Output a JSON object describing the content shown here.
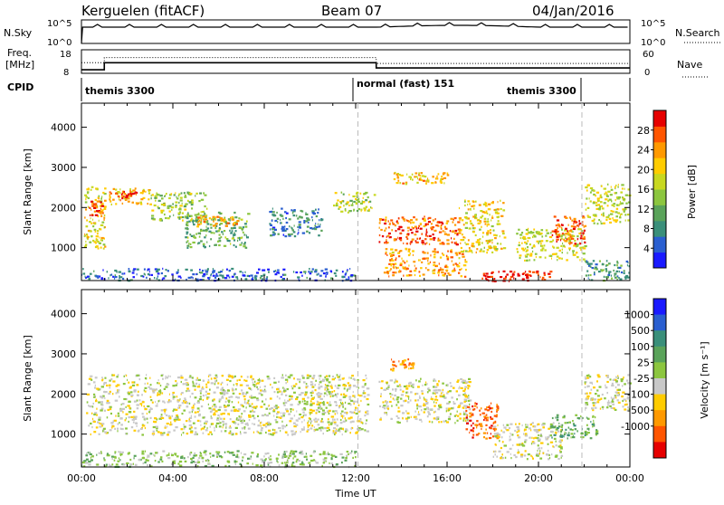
{
  "header": {
    "station": "Kerguelen (fitACF)",
    "beam": "Beam 07",
    "date": "04/Jan/2016"
  },
  "strip_nsky": {
    "left_label": "N.Sky",
    "right_label": "N.Search",
    "left_ticks": [
      "10^5",
      "10^0"
    ],
    "right_ticks": [
      "10^5",
      "10^0"
    ]
  },
  "strip_freq": {
    "left_label": "Freq.",
    "left_unit": "[MHz]",
    "right_label": "Nave",
    "left_ticks": [
      "18",
      "8"
    ],
    "right_ticks": [
      "60",
      "0"
    ],
    "freq_steps": [
      {
        "from_h": 0.0,
        "to_h": 1.0,
        "mhz": 9.5
      },
      {
        "from_h": 1.0,
        "to_h": 12.9,
        "mhz": 12.5
      },
      {
        "from_h": 12.9,
        "to_h": 24.0,
        "mhz": 10.3
      }
    ],
    "nave_steps": [
      {
        "from_h": 0.0,
        "to_h": 1.0,
        "value": 27
      },
      {
        "from_h": 1.0,
        "to_h": 12.9,
        "value": 40
      },
      {
        "from_h": 12.9,
        "to_h": 24.0,
        "value": 25
      }
    ]
  },
  "strip_cpid": {
    "label": "CPID",
    "segments": [
      {
        "name": "themis 3300",
        "from_h": 0.0,
        "to_h": 12.1
      },
      {
        "name": "normal (fast) 151",
        "from_h": 12.1,
        "to_h": 21.9
      },
      {
        "name": "themis 3300",
        "from_h": 21.9,
        "to_h": 24.0
      }
    ]
  },
  "chart_data": [
    {
      "type": "heatmap",
      "panel": "power",
      "ylabel": "Slant Range [km]",
      "ylim": [
        180,
        4600
      ],
      "yticks": [
        1000,
        2000,
        3000,
        4000
      ],
      "xlabel": "",
      "xlim": [
        0,
        24
      ],
      "colorbar": {
        "label": "Power [dB]",
        "range": [
          0,
          32
        ],
        "ticks": [
          4,
          8,
          12,
          16,
          20,
          24,
          28
        ],
        "colors": [
          "#1a1aff",
          "#2a5fd0",
          "#3a8f7a",
          "#5aa35a",
          "#8cc63f",
          "#c8d820",
          "#ffcc00",
          "#ff9900",
          "#ff5500",
          "#e60000"
        ]
      },
      "regions": [
        {
          "t0": 0.0,
          "t1": 12.0,
          "r0": 200,
          "r1": 500,
          "v": 4
        },
        {
          "t0": 0.1,
          "t1": 1.0,
          "r0": 1000,
          "r1": 2600,
          "v": 18
        },
        {
          "t0": 0.3,
          "t1": 0.9,
          "r0": 1800,
          "r1": 2200,
          "v": 26
        },
        {
          "t0": 1.2,
          "t1": 3.0,
          "r0": 2100,
          "r1": 2500,
          "v": 20
        },
        {
          "t0": 1.4,
          "t1": 2.4,
          "r0": 2250,
          "r1": 2450,
          "v": 27
        },
        {
          "t0": 3.0,
          "t1": 5.5,
          "r0": 1700,
          "r1": 2400,
          "v": 14
        },
        {
          "t0": 4.5,
          "t1": 7.3,
          "r0": 1000,
          "r1": 1900,
          "v": 10
        },
        {
          "t0": 5.0,
          "t1": 6.8,
          "r0": 1550,
          "r1": 1800,
          "v": 22
        },
        {
          "t0": 8.2,
          "t1": 10.5,
          "r0": 1300,
          "r1": 2000,
          "v": 6
        },
        {
          "t0": 11.0,
          "t1": 12.8,
          "r0": 1900,
          "r1": 2400,
          "v": 15
        },
        {
          "t0": 13.0,
          "t1": 16.5,
          "r0": 1500,
          "r1": 1800,
          "v": 24
        },
        {
          "t0": 13.0,
          "t1": 16.5,
          "r0": 1100,
          "r1": 1500,
          "v": 26
        },
        {
          "t0": 13.2,
          "t1": 16.8,
          "r0": 300,
          "r1": 1000,
          "v": 22
        },
        {
          "t0": 13.5,
          "t1": 16.0,
          "r0": 2600,
          "r1": 2900,
          "v": 20
        },
        {
          "t0": 16.5,
          "t1": 18.5,
          "r0": 900,
          "r1": 2200,
          "v": 18
        },
        {
          "t0": 17.5,
          "t1": 20.5,
          "r0": 180,
          "r1": 450,
          "v": 29
        },
        {
          "t0": 19.0,
          "t1": 22.0,
          "r0": 700,
          "r1": 1500,
          "v": 16
        },
        {
          "t0": 20.5,
          "t1": 22.0,
          "r0": 1100,
          "r1": 1800,
          "v": 26
        },
        {
          "t0": 22.0,
          "t1": 24.0,
          "r0": 1600,
          "r1": 2600,
          "v": 16
        },
        {
          "t0": 22.0,
          "t1": 24.0,
          "r0": 200,
          "r1": 700,
          "v": 8
        }
      ]
    },
    {
      "type": "heatmap",
      "panel": "velocity",
      "ylabel": "Slant Range [km]",
      "ylim": [
        180,
        4600
      ],
      "yticks": [
        1000,
        2000,
        3000,
        4000
      ],
      "xlabel": "Time UT",
      "xlim": [
        0,
        24
      ],
      "xticks": [
        "00:00",
        "04:00",
        "08:00",
        "12:00",
        "16:00",
        "20:00",
        "00:00"
      ],
      "colorbar": {
        "label": "Velocity [m s⁻¹]",
        "ticks": [
          "1000",
          "500",
          "100",
          "25",
          "-25",
          "-100",
          "-500",
          "-1000"
        ],
        "colors": [
          "#1a1aff",
          "#2a5fd0",
          "#3a8f7a",
          "#5aa35a",
          "#8cc63f",
          "#c8c8c8",
          "#ffcc00",
          "#ff9900",
          "#ff5500",
          "#e60000"
        ]
      },
      "regions": [
        {
          "t0": 0.0,
          "t1": 12.0,
          "r0": 200,
          "r1": 600,
          "v": 4
        },
        {
          "t0": 0.2,
          "t1": 12.5,
          "r0": 1000,
          "r1": 2500,
          "v": 5
        },
        {
          "t0": 13.0,
          "t1": 17.0,
          "r0": 1300,
          "r1": 2400,
          "v": 5
        },
        {
          "t0": 13.5,
          "t1": 14.5,
          "r0": 2600,
          "r1": 2900,
          "v": 7
        },
        {
          "t0": 16.8,
          "t1": 18.2,
          "r0": 900,
          "r1": 1800,
          "v": 8
        },
        {
          "t0": 18.0,
          "t1": 21.0,
          "r0": 400,
          "r1": 1300,
          "v": 5
        },
        {
          "t0": 20.5,
          "t1": 22.5,
          "r0": 900,
          "r1": 1500,
          "v": 3
        },
        {
          "t0": 22.0,
          "t1": 24.0,
          "r0": 1600,
          "r1": 2500,
          "v": 5
        }
      ]
    }
  ]
}
